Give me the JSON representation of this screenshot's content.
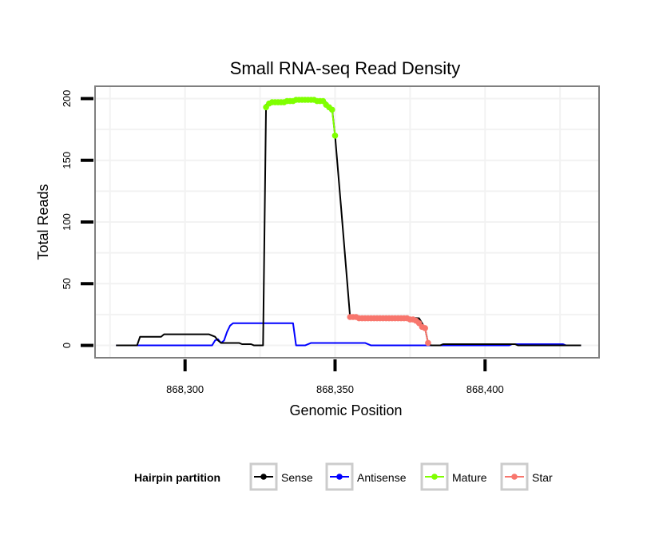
{
  "chart_data": {
    "type": "line",
    "title": "Small RNA-seq Read Density",
    "xlabel": "Genomic Position",
    "ylabel": "Total Reads",
    "xlim": [
      868270,
      868438
    ],
    "ylim": [
      -10,
      210
    ],
    "x_ticks": [
      868300,
      868350,
      868400
    ],
    "x_tick_labels": [
      "868,300",
      "868,350",
      "868,400"
    ],
    "y_ticks": [
      0,
      50,
      100,
      150,
      200
    ],
    "y_tick_labels": [
      "0",
      "50",
      "100",
      "150",
      "200"
    ],
    "grid": true,
    "legend": {
      "title": "Hairpin partition",
      "position": "bottom",
      "entries": [
        "Sense",
        "Antisense",
        "Mature",
        "Star"
      ]
    },
    "colors": {
      "Sense": "#000000",
      "Antisense": "#0000ff",
      "Mature": "#7fff00",
      "Star": "#f8766d",
      "panel_border": "#7f7f7f",
      "grid": "#f2f2f2"
    },
    "series": [
      {
        "name": "Sense",
        "points": [
          [
            868277,
            0
          ],
          [
            868284,
            0
          ],
          [
            868285,
            7
          ],
          [
            868292,
            7
          ],
          [
            868293,
            9
          ],
          [
            868308,
            9
          ],
          [
            868310,
            7
          ],
          [
            868311,
            4
          ],
          [
            868312,
            2
          ],
          [
            868318,
            2
          ],
          [
            868319,
            1
          ],
          [
            868322,
            1
          ],
          [
            868323,
            0
          ],
          [
            868326,
            0
          ],
          [
            868327,
            195
          ],
          [
            868328,
            197
          ],
          [
            868337,
            199
          ],
          [
            868346,
            199
          ],
          [
            868347,
            197
          ],
          [
            868348,
            193
          ],
          [
            868349,
            192
          ],
          [
            868350,
            170
          ],
          [
            868352,
            112
          ],
          [
            868355,
            23
          ],
          [
            868378,
            22
          ],
          [
            868380,
            14
          ],
          [
            868381,
            2
          ],
          [
            868382,
            0
          ],
          [
            868385,
            0
          ],
          [
            868386,
            1
          ],
          [
            868410,
            1
          ],
          [
            868411,
            0
          ],
          [
            868432,
            0
          ]
        ]
      },
      {
        "name": "Antisense",
        "points": [
          [
            868277,
            0
          ],
          [
            868309,
            0
          ],
          [
            868310,
            4
          ],
          [
            868311,
            5
          ],
          [
            868312,
            2
          ],
          [
            868313,
            4
          ],
          [
            868314,
            11
          ],
          [
            868315,
            16
          ],
          [
            868316,
            18
          ],
          [
            868336,
            18
          ],
          [
            868337,
            0
          ],
          [
            868340,
            0
          ],
          [
            868342,
            2
          ],
          [
            868360,
            2
          ],
          [
            868362,
            0
          ],
          [
            868408,
            0
          ],
          [
            868409,
            1
          ],
          [
            868426,
            1
          ],
          [
            868427,
            0
          ],
          [
            868432,
            0
          ]
        ]
      },
      {
        "name": "Mature",
        "points": [
          [
            868327,
            193
          ],
          [
            868328,
            196
          ],
          [
            868329,
            197
          ],
          [
            868330,
            197
          ],
          [
            868331,
            197
          ],
          [
            868332,
            197
          ],
          [
            868333,
            197
          ],
          [
            868334,
            198
          ],
          [
            868335,
            198
          ],
          [
            868336,
            198
          ],
          [
            868337,
            199
          ],
          [
            868338,
            199
          ],
          [
            868339,
            199
          ],
          [
            868340,
            199
          ],
          [
            868341,
            199
          ],
          [
            868342,
            199
          ],
          [
            868343,
            199
          ],
          [
            868344,
            198
          ],
          [
            868345,
            198
          ],
          [
            868346,
            198
          ],
          [
            868347,
            195
          ],
          [
            868348,
            193
          ],
          [
            868349,
            191
          ],
          [
            868350,
            170
          ]
        ]
      },
      {
        "name": "Star",
        "points": [
          [
            868355,
            23
          ],
          [
            868356,
            23
          ],
          [
            868357,
            23
          ],
          [
            868358,
            22
          ],
          [
            868359,
            22
          ],
          [
            868360,
            22
          ],
          [
            868361,
            22
          ],
          [
            868362,
            22
          ],
          [
            868363,
            22
          ],
          [
            868364,
            22
          ],
          [
            868365,
            22
          ],
          [
            868366,
            22
          ],
          [
            868367,
            22
          ],
          [
            868368,
            22
          ],
          [
            868369,
            22
          ],
          [
            868370,
            22
          ],
          [
            868371,
            22
          ],
          [
            868372,
            22
          ],
          [
            868373,
            22
          ],
          [
            868374,
            22
          ],
          [
            868375,
            21
          ],
          [
            868376,
            21
          ],
          [
            868377,
            20
          ],
          [
            868378,
            18
          ],
          [
            868379,
            15
          ],
          [
            868380,
            14
          ],
          [
            868381,
            2
          ]
        ]
      }
    ]
  }
}
